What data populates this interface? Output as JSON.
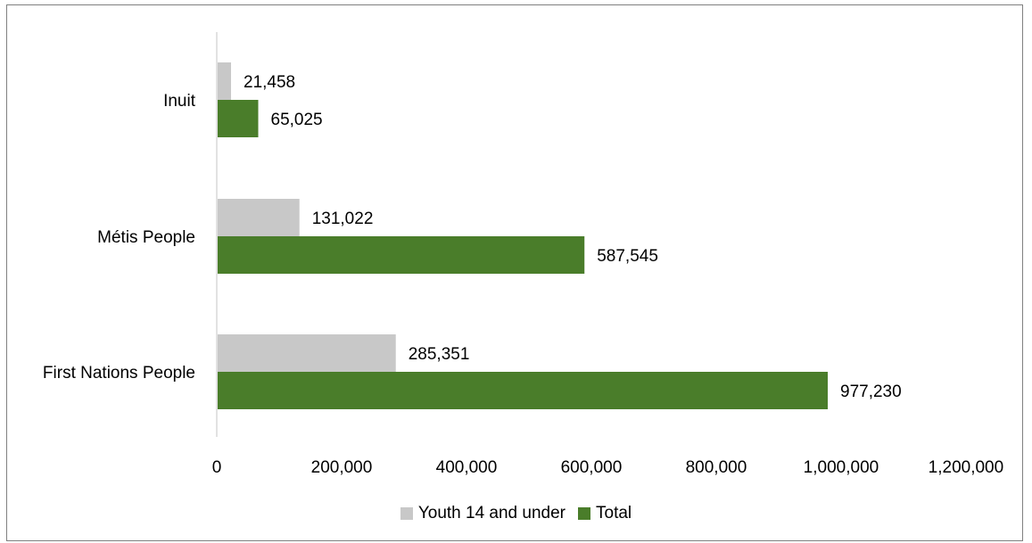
{
  "chart_data": {
    "type": "bar",
    "orientation": "horizontal",
    "categories": [
      "Inuit",
      "Métis People",
      "First Nations People"
    ],
    "series": [
      {
        "name": "Youth 14 and under",
        "values": [
          21458,
          131022,
          285351
        ],
        "labels": [
          "21,458",
          "131,022",
          "285,351"
        ],
        "color": "#c8c8c8"
      },
      {
        "name": "Total",
        "values": [
          65025,
          587545,
          977230
        ],
        "labels": [
          "65,025",
          "587,545",
          "977,230"
        ],
        "color": "#4a7d2a"
      }
    ],
    "xlim": [
      0,
      1200000
    ],
    "ticks": [
      "0",
      "200,000",
      "400,000",
      "600,000",
      "800,000",
      "1,000,000",
      "1,200,000"
    ],
    "tick_values": [
      0,
      200000,
      400000,
      600000,
      800000,
      1000000,
      1200000
    ],
    "grid": false,
    "legend_position": "bottom",
    "title": "",
    "xlabel": "",
    "ylabel": ""
  }
}
